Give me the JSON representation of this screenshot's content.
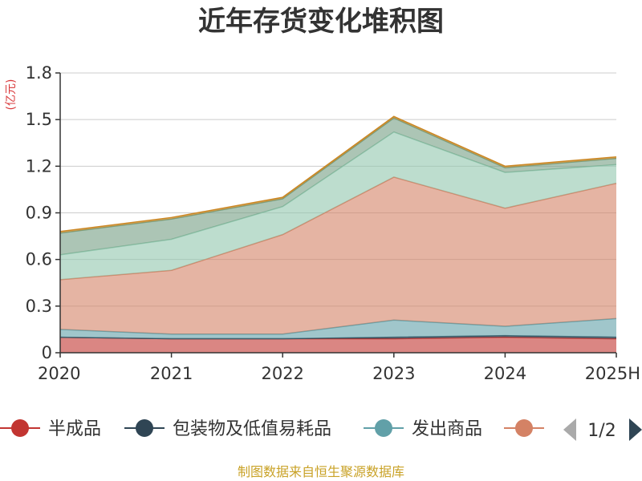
{
  "chart_data": {
    "type": "area",
    "stacked": true,
    "title": "近年存货变化堆积图",
    "unit_label": "(亿元)",
    "categories": [
      "2020",
      "2021",
      "2022",
      "2023",
      "2024",
      "2025H"
    ],
    "ylim": [
      0,
      1.8
    ],
    "yticks": [
      0,
      0.3,
      0.6,
      0.9,
      1.2,
      1.5,
      1.8
    ],
    "ytick_labels": [
      "0",
      "0.3",
      "0.6",
      "0.9",
      "1.2",
      "1.5",
      "1.8"
    ],
    "grid": true,
    "series": [
      {
        "name": "半成品",
        "color": "#c23531",
        "values": [
          0.1,
          0.09,
          0.09,
          0.09,
          0.1,
          0.09
        ]
      },
      {
        "name": "包装物及低值易耗品",
        "color": "#2f4554",
        "values": [
          0.0,
          0.0,
          0.0,
          0.01,
          0.01,
          0.01
        ]
      },
      {
        "name": "发出商品",
        "color": "#61a0a8",
        "values": [
          0.05,
          0.03,
          0.03,
          0.11,
          0.06,
          0.12
        ]
      },
      {
        "name": "",
        "color": "#d48265",
        "values": [
          0.32,
          0.41,
          0.64,
          0.92,
          0.76,
          0.87
        ]
      },
      {
        "name": "",
        "color": "#91c7ae",
        "values": [
          0.16,
          0.2,
          0.18,
          0.29,
          0.23,
          0.12
        ]
      },
      {
        "name": "",
        "color": "#749f83",
        "values": [
          0.14,
          0.13,
          0.05,
          0.09,
          0.03,
          0.04
        ]
      },
      {
        "name": "",
        "color": "#ca8622",
        "values": [
          0.01,
          0.01,
          0.01,
          0.01,
          0.01,
          0.01
        ]
      }
    ],
    "legend": {
      "position": "bottom",
      "items": [
        {
          "name": "半成品",
          "color": "#c23531"
        },
        {
          "name": "包装物及低值易耗品",
          "color": "#2f4554"
        },
        {
          "name": "发出商品",
          "color": "#61a0a8"
        },
        {
          "name": "",
          "color": "#d48265"
        }
      ],
      "page": "1/2"
    }
  },
  "footer": {
    "source": "制图数据来自恒生聚源数据库"
  }
}
